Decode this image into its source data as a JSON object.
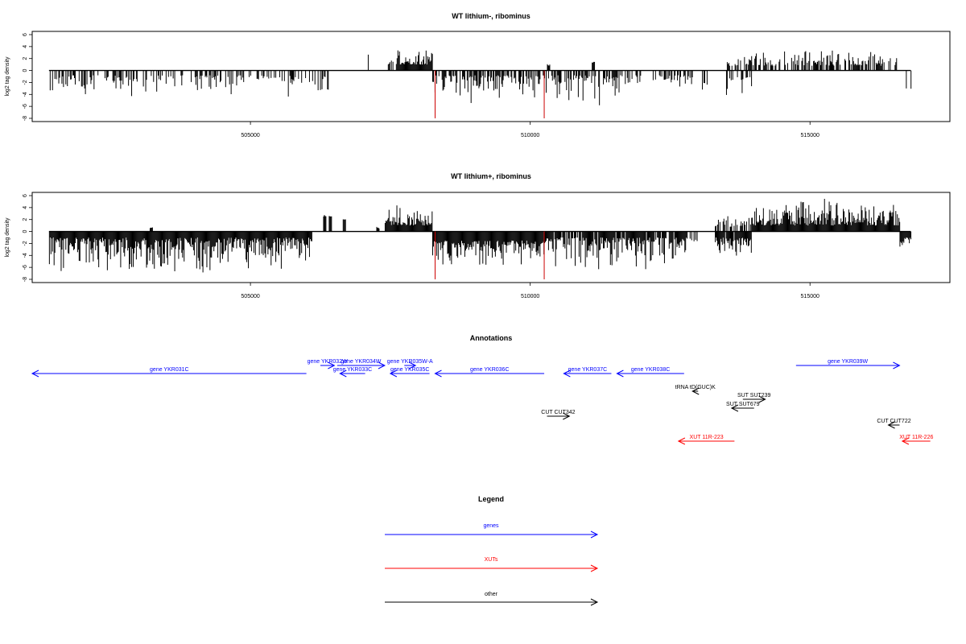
{
  "colors": {
    "gene": "#0000ff",
    "xut": "#ff0000",
    "other": "#000000",
    "marker": "#cc0000",
    "bar": "#000000"
  },
  "chart_data": [
    {
      "type": "bar",
      "title": "WT lithium-, ribominus",
      "ylabel": "log2 tag density",
      "xlim": [
        501100,
        517500
      ],
      "ylim": [
        -8,
        6
      ],
      "yticks": [
        -8,
        -6,
        -4,
        -2,
        0,
        2,
        4,
        6
      ],
      "xticks": [
        505000,
        510000,
        515000
      ],
      "xtick_labels": [
        "505000",
        "510000",
        "515000"
      ],
      "markers": [
        508300,
        510250
      ],
      "segments": [
        {
          "x0": 501400,
          "x1": 506400,
          "sign": -1,
          "density": 0.45,
          "min": 0.8,
          "max": 4.8
        },
        {
          "x0": 507000,
          "x1": 507150,
          "sign": 1,
          "density": 0.2,
          "min": 2.5,
          "max": 3.2
        },
        {
          "x0": 507400,
          "x1": 507550,
          "sign": 1,
          "density": 0.5,
          "min": 1.0,
          "max": 2.5
        },
        {
          "x0": 507600,
          "x1": 508250,
          "sign": 1,
          "density": 1.0,
          "min": 1.0,
          "max": 4.2
        },
        {
          "x0": 508250,
          "x1": 510250,
          "sign": -1,
          "density": 0.65,
          "min": 0.8,
          "max": 5.8
        },
        {
          "x0": 510250,
          "x1": 511700,
          "sign": -1,
          "density": 0.6,
          "min": 0.8,
          "max": 6.0
        },
        {
          "x0": 510300,
          "x1": 510350,
          "sign": 1,
          "density": 1.0,
          "min": 0.8,
          "max": 1.2
        },
        {
          "x0": 511100,
          "x1": 511150,
          "sign": 1,
          "density": 1.0,
          "min": 1.2,
          "max": 1.6
        },
        {
          "x0": 511700,
          "x1": 512900,
          "sign": -1,
          "density": 0.35,
          "min": 0.8,
          "max": 3.0
        },
        {
          "x0": 513000,
          "x1": 513200,
          "sign": -1,
          "density": 0.3,
          "min": 2.0,
          "max": 5.0
        },
        {
          "x0": 513500,
          "x1": 513950,
          "sign": -1,
          "density": 0.6,
          "min": 1.0,
          "max": 4.8
        },
        {
          "x0": 513500,
          "x1": 513950,
          "sign": 1,
          "density": 0.5,
          "min": 0.8,
          "max": 2.6
        },
        {
          "x0": 513950,
          "x1": 516600,
          "sign": 1,
          "density": 0.55,
          "min": 0.8,
          "max": 3.8
        },
        {
          "x0": 516700,
          "x1": 516800,
          "sign": -1,
          "density": 0.3,
          "min": 3.0,
          "max": 4.0
        }
      ]
    },
    {
      "type": "bar",
      "title": "WT lithium+, ribominus",
      "ylabel": "log2 tag density",
      "xlim": [
        501100,
        517500
      ],
      "ylim": [
        -8,
        6
      ],
      "yticks": [
        -8,
        -6,
        -4,
        -2,
        0,
        2,
        4,
        6
      ],
      "xticks": [
        505000,
        510000,
        515000
      ],
      "xtick_labels": [
        "505000",
        "510000",
        "515000"
      ],
      "markers": [
        508300,
        510250
      ],
      "segments": [
        {
          "x0": 501400,
          "x1": 506100,
          "sign": -1,
          "density": 1.0,
          "min": 1.0,
          "max": 7.5
        },
        {
          "x0": 503200,
          "x1": 503250,
          "sign": 1,
          "density": 1.0,
          "min": 0.5,
          "max": 1.0
        },
        {
          "x0": 506300,
          "x1": 506350,
          "sign": 1,
          "density": 1.0,
          "min": 2.5,
          "max": 3.0
        },
        {
          "x0": 506400,
          "x1": 506450,
          "sign": 1,
          "density": 1.0,
          "min": 2.5,
          "max": 3.0
        },
        {
          "x0": 506650,
          "x1": 506700,
          "sign": 1,
          "density": 1.0,
          "min": 2.0,
          "max": 2.4
        },
        {
          "x0": 507250,
          "x1": 507300,
          "sign": 1,
          "density": 1.0,
          "min": 0.5,
          "max": 1.0
        },
        {
          "x0": 507400,
          "x1": 508250,
          "sign": 1,
          "density": 1.0,
          "min": 1.0,
          "max": 4.8
        },
        {
          "x0": 508250,
          "x1": 510250,
          "sign": -1,
          "density": 1.0,
          "min": 1.5,
          "max": 6.5
        },
        {
          "x0": 510250,
          "x1": 512800,
          "sign": -1,
          "density": 0.9,
          "min": 1.0,
          "max": 7.0
        },
        {
          "x0": 512850,
          "x1": 513000,
          "sign": -1,
          "density": 0.5,
          "min": 1.0,
          "max": 3.0
        },
        {
          "x0": 513300,
          "x1": 513950,
          "sign": -1,
          "density": 0.9,
          "min": 1.0,
          "max": 5.5
        },
        {
          "x0": 513300,
          "x1": 513950,
          "sign": 1,
          "density": 0.6,
          "min": 0.8,
          "max": 3.2
        },
        {
          "x0": 513950,
          "x1": 516600,
          "sign": 1,
          "density": 1.0,
          "min": 1.0,
          "max": 6.0
        },
        {
          "x0": 516600,
          "x1": 516800,
          "sign": -1,
          "density": 1.0,
          "min": 1.0,
          "max": 3.5
        }
      ]
    }
  ],
  "annotations": {
    "title": "Annotations",
    "features": [
      {
        "label": "gene YKR031C",
        "kind": "gene",
        "start": 501100,
        "end": 506000,
        "dir": "left",
        "row": 1
      },
      {
        "label": "gene YKR032W",
        "kind": "gene",
        "start": 506250,
        "end": 506500,
        "dir": "right",
        "row": 0
      },
      {
        "label": "gene YKR034W",
        "kind": "gene",
        "start": 506550,
        "end": 507400,
        "dir": "right",
        "row": 0
      },
      {
        "label": "gene YKR033C",
        "kind": "gene",
        "start": 506600,
        "end": 507050,
        "dir": "left",
        "row": 1
      },
      {
        "label": "gene YKR035W-A",
        "kind": "gene",
        "start": 507750,
        "end": 507950,
        "dir": "right",
        "row": 0
      },
      {
        "label": "gene YKR035C",
        "kind": "gene",
        "start": 507500,
        "end": 508200,
        "dir": "left",
        "row": 1
      },
      {
        "label": "gene YKR036C",
        "kind": "gene",
        "start": 508300,
        "end": 510250,
        "dir": "left",
        "row": 1
      },
      {
        "label": "gene YKR037C",
        "kind": "gene",
        "start": 510600,
        "end": 511450,
        "dir": "left",
        "row": 1
      },
      {
        "label": "gene YKR038C",
        "kind": "gene",
        "start": 511550,
        "end": 512750,
        "dir": "left",
        "row": 1
      },
      {
        "label": "gene YKR039W",
        "kind": "gene",
        "start": 514750,
        "end": 516600,
        "dir": "right",
        "row": 0
      },
      {
        "label": "tRNA tD(GUC)K",
        "kind": "other",
        "start": 512900,
        "end": 513000,
        "dir": "left",
        "row": 2
      },
      {
        "label": "SUT SUT239",
        "kind": "other",
        "start": 513800,
        "end": 514200,
        "dir": "right",
        "row": 3
      },
      {
        "label": "SUT SUT679",
        "kind": "other",
        "start": 513600,
        "end": 514000,
        "dir": "left",
        "row": 4
      },
      {
        "label": "CUT CUT342",
        "kind": "other",
        "start": 510300,
        "end": 510700,
        "dir": "right",
        "row": 5
      },
      {
        "label": "CUT CUT722",
        "kind": "other",
        "start": 516400,
        "end": 516600,
        "dir": "left",
        "row": 6
      },
      {
        "label": "XUT 11R-223",
        "kind": "xut",
        "start": 512650,
        "end": 513650,
        "dir": "left",
        "row": 7
      },
      {
        "label": "XUT 11R-226",
        "kind": "xut",
        "start": 516650,
        "end": 517150,
        "dir": "left",
        "row": 7
      }
    ]
  },
  "legend": {
    "title": "Legend",
    "items": [
      {
        "label": "genes",
        "kind": "gene"
      },
      {
        "label": "XUTs",
        "kind": "xut"
      },
      {
        "label": "other",
        "kind": "other"
      }
    ]
  }
}
